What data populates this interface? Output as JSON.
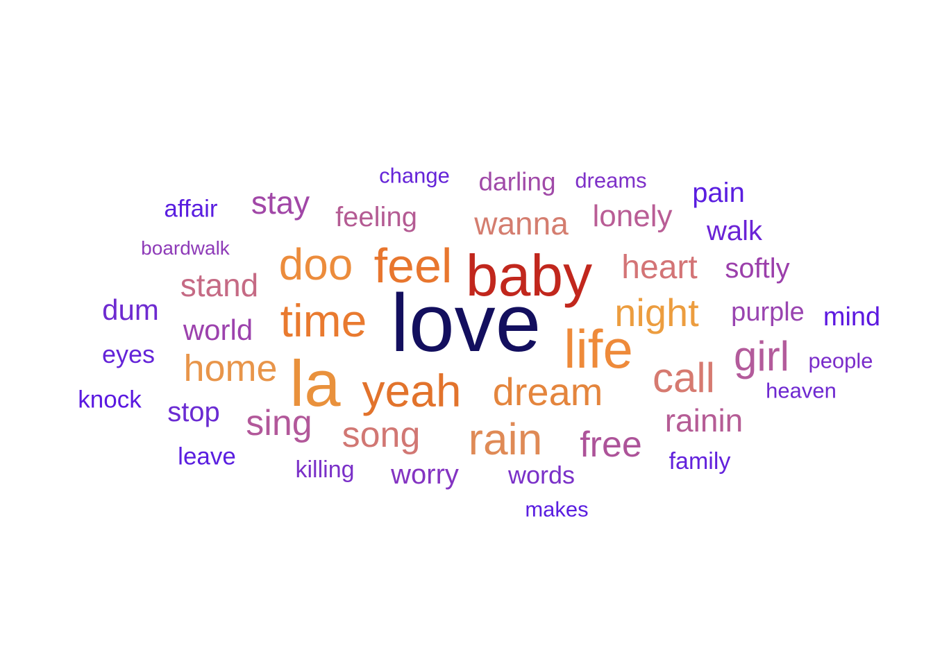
{
  "words": [
    {
      "text": "love",
      "weight": 100,
      "color": "#130f5e"
    },
    {
      "text": "baby",
      "weight": 70,
      "color": "#c1271d"
    },
    {
      "text": "la",
      "weight": 68,
      "color": "#e9913c"
    },
    {
      "text": "life",
      "weight": 64,
      "color": "#ee8a3a"
    },
    {
      "text": "feel",
      "weight": 62,
      "color": "#e8762e"
    },
    {
      "text": "time",
      "weight": 60,
      "color": "#e97a2f"
    },
    {
      "text": "yeah",
      "weight": 60,
      "color": "#e2732c"
    },
    {
      "text": "doo",
      "weight": 59,
      "color": "#ec8c3c"
    },
    {
      "text": "rain",
      "weight": 59,
      "color": "#df8a56"
    },
    {
      "text": "night",
      "weight": 53,
      "color": "#ec9d3f"
    },
    {
      "text": "dream",
      "weight": 52,
      "color": "#e4853d"
    },
    {
      "text": "call",
      "weight": 55,
      "color": "#d67a70"
    },
    {
      "text": "girl",
      "weight": 55,
      "color": "#b35b9b"
    },
    {
      "text": "home",
      "weight": 50,
      "color": "#e8954a"
    },
    {
      "text": "song",
      "weight": 48,
      "color": "#d17773"
    },
    {
      "text": "sing",
      "weight": 48,
      "color": "#b2589a"
    },
    {
      "text": "free",
      "weight": 48,
      "color": "#ad5399"
    },
    {
      "text": "heart",
      "weight": 46,
      "color": "#d37476"
    },
    {
      "text": "stand",
      "weight": 44,
      "color": "#c56a84"
    },
    {
      "text": "rainin",
      "weight": 44,
      "color": "#b55c95"
    },
    {
      "text": "wanna",
      "weight": 44,
      "color": "#d47d6f"
    },
    {
      "text": "lonely",
      "weight": 42,
      "color": "#b95d95"
    },
    {
      "text": "stay",
      "weight": 42,
      "color": "#a147a7"
    },
    {
      "text": "world",
      "weight": 40,
      "color": "#9c42ad"
    },
    {
      "text": "dum",
      "weight": 40,
      "color": "#6e2bd0"
    },
    {
      "text": "softly",
      "weight": 39,
      "color": "#9b3fab"
    },
    {
      "text": "feeling",
      "weight": 39,
      "color": "#b45b93"
    },
    {
      "text": "pain",
      "weight": 38,
      "color": "#5a1ee0"
    },
    {
      "text": "walk",
      "weight": 38,
      "color": "#6b23d6"
    },
    {
      "text": "purple",
      "weight": 37,
      "color": "#9944b0"
    },
    {
      "text": "mind",
      "weight": 37,
      "color": "#5c18e0"
    },
    {
      "text": "stop",
      "weight": 37,
      "color": "#6a2bd2"
    },
    {
      "text": "worry",
      "weight": 37,
      "color": "#8434c2"
    },
    {
      "text": "darling",
      "weight": 36,
      "color": "#a04aa8"
    },
    {
      "text": "eyes",
      "weight": 35,
      "color": "#6423d8"
    },
    {
      "text": "knock",
      "weight": 34,
      "color": "#5a18e0"
    },
    {
      "text": "leave",
      "weight": 34,
      "color": "#5a1ee0"
    },
    {
      "text": "words",
      "weight": 34,
      "color": "#7a30c8"
    },
    {
      "text": "affair",
      "weight": 34,
      "color": "#5a1ee0"
    },
    {
      "text": "killing",
      "weight": 33,
      "color": "#7a30c8"
    },
    {
      "text": "family",
      "weight": 33,
      "color": "#6221dc"
    },
    {
      "text": "people",
      "weight": 31,
      "color": "#7a2cca"
    },
    {
      "text": "heaven",
      "weight": 31,
      "color": "#6e28d0"
    },
    {
      "text": "dreams",
      "weight": 31,
      "color": "#7e30c8"
    },
    {
      "text": "change",
      "weight": 30,
      "color": "#6524d8"
    },
    {
      "text": "makes",
      "weight": 31,
      "color": "#5a1ee0"
    },
    {
      "text": "boardwalk",
      "weight": 28,
      "color": "#8e3bb8"
    }
  ]
}
